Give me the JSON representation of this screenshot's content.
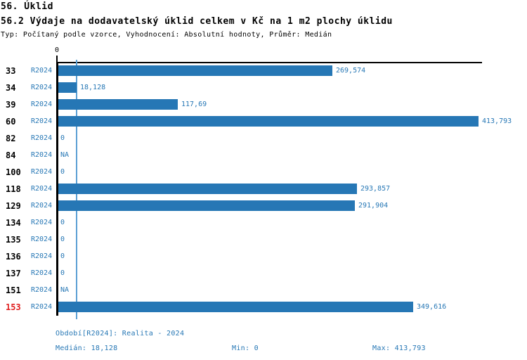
{
  "header": {
    "page_title": "56. Úklid",
    "chart_title": "56.2 Výdaje na dodavatelský úklid celkem v Kč na 1 m2 plochy úklidu",
    "meta": "Typ: Počítaný podle vzorce, Vyhodnocení: Absolutní hodnoty, Průměr: Medián"
  },
  "chart_data": {
    "type": "bar",
    "orientation": "horizontal",
    "title": "56.2 Výdaje na dodavatelský úklid celkem v Kč na 1 m2 plochy úklidu",
    "axis": {
      "origin_tick_label": "0",
      "value_axis_position": "top",
      "max_value": 413.793,
      "grid": "off"
    },
    "median_value": 18.128,
    "median_line_color": "#5b9fd4",
    "bar_color": "#2677b5",
    "label_color": "#2677b5",
    "highlight_color": "#e02020",
    "categories": [
      "33",
      "34",
      "39",
      "60",
      "82",
      "84",
      "100",
      "118",
      "129",
      "134",
      "135",
      "136",
      "137",
      "151",
      "153"
    ],
    "rows": [
      {
        "id": "33",
        "period": "R2024",
        "value": 269.574,
        "value_label": "269,574",
        "highlight": false
      },
      {
        "id": "34",
        "period": "R2024",
        "value": 18.128,
        "value_label": "18,128",
        "highlight": false
      },
      {
        "id": "39",
        "period": "R2024",
        "value": 117.69,
        "value_label": "117,69",
        "highlight": false
      },
      {
        "id": "60",
        "period": "R2024",
        "value": 413.793,
        "value_label": "413,793",
        "highlight": false
      },
      {
        "id": "82",
        "period": "R2024",
        "value": 0,
        "value_label": "0",
        "highlight": false
      },
      {
        "id": "84",
        "period": "R2024",
        "value": null,
        "value_label": "NA",
        "highlight": false
      },
      {
        "id": "100",
        "period": "R2024",
        "value": 0,
        "value_label": "0",
        "highlight": false
      },
      {
        "id": "118",
        "period": "R2024",
        "value": 293.857,
        "value_label": "293,857",
        "highlight": false
      },
      {
        "id": "129",
        "period": "R2024",
        "value": 291.904,
        "value_label": "291,904",
        "highlight": false
      },
      {
        "id": "134",
        "period": "R2024",
        "value": 0,
        "value_label": "0",
        "highlight": false
      },
      {
        "id": "135",
        "period": "R2024",
        "value": 0,
        "value_label": "0",
        "highlight": false
      },
      {
        "id": "136",
        "period": "R2024",
        "value": 0,
        "value_label": "0",
        "highlight": false
      },
      {
        "id": "137",
        "period": "R2024",
        "value": 0,
        "value_label": "0",
        "highlight": false
      },
      {
        "id": "151",
        "period": "R2024",
        "value": null,
        "value_label": "NA",
        "highlight": false
      },
      {
        "id": "153",
        "period": "R2024",
        "value": 349.616,
        "value_label": "349,616",
        "highlight": true
      }
    ]
  },
  "footer": {
    "period_line": "Období[R2024]: Realita - 2024",
    "median": "Medián: 18,128",
    "min": "Min: 0",
    "max": "Max: 413,793"
  }
}
